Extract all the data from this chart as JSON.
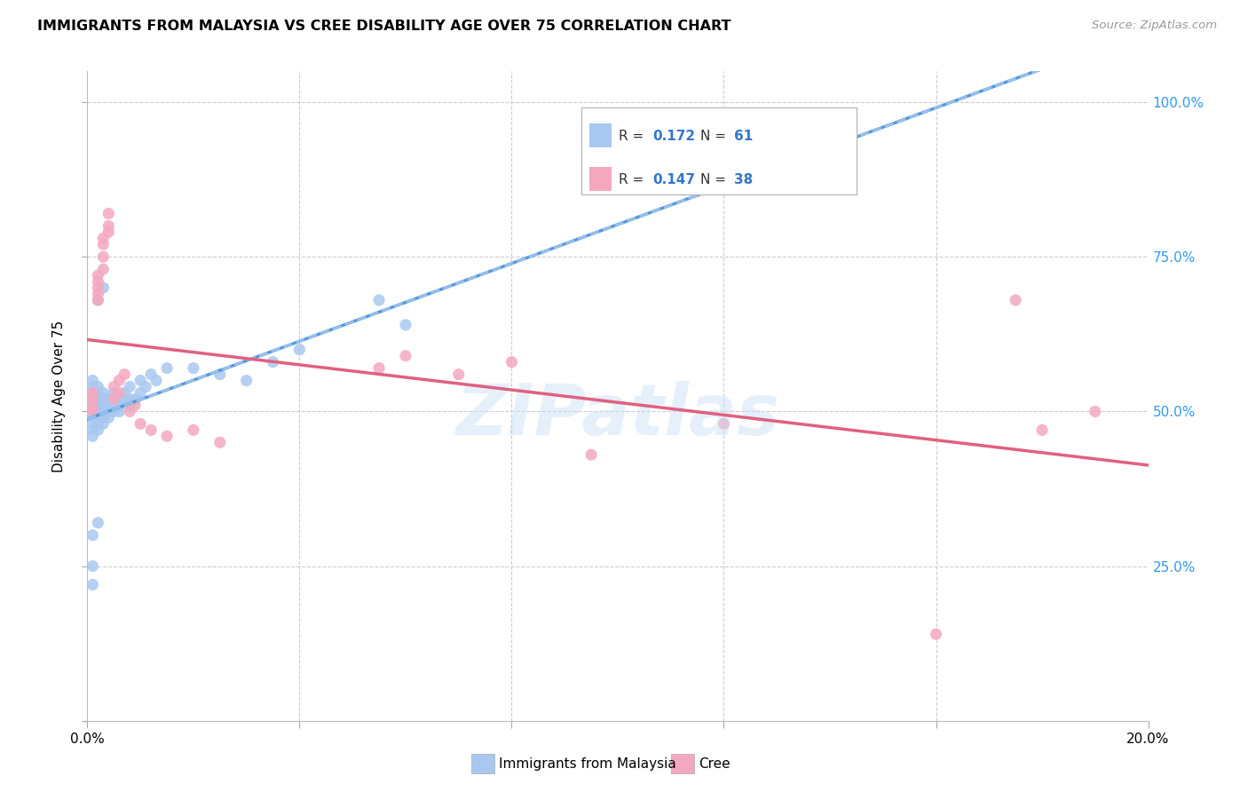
{
  "title": "IMMIGRANTS FROM MALAYSIA VS CREE DISABILITY AGE OVER 75 CORRELATION CHART",
  "source": "Source: ZipAtlas.com",
  "ylabel_label": "Disability Age Over 75",
  "xlim": [
    0.0,
    0.2
  ],
  "ylim": [
    0.0,
    1.05
  ],
  "blue_color": "#a8c8f0",
  "pink_color": "#f4a8c0",
  "blue_line_color": "#5599dd",
  "pink_line_color": "#e06080",
  "blue_dash_color": "#88bbee",
  "legend_text_color": "#3377cc",
  "background_color": "#ffffff",
  "grid_color": "#cccccc",
  "blue_x": [
    0.001,
    0.001,
    0.001,
    0.001,
    0.001,
    0.001,
    0.001,
    0.001,
    0.001,
    0.001,
    0.002,
    0.002,
    0.002,
    0.002,
    0.002,
    0.002,
    0.002,
    0.002,
    0.003,
    0.003,
    0.003,
    0.003,
    0.003,
    0.003,
    0.004,
    0.004,
    0.004,
    0.004,
    0.005,
    0.005,
    0.005,
    0.006,
    0.006,
    0.006,
    0.007,
    0.007,
    0.008,
    0.008,
    0.009,
    0.01,
    0.011,
    0.013,
    0.015,
    0.001,
    0.001,
    0.002,
    0.003,
    0.001,
    0.002,
    0.055,
    0.06,
    0.04,
    0.035,
    0.03,
    0.025,
    0.02,
    0.012,
    0.01,
    0.008,
    0.006
  ],
  "blue_y": [
    0.5,
    0.51,
    0.52,
    0.49,
    0.48,
    0.53,
    0.47,
    0.46,
    0.54,
    0.55,
    0.5,
    0.51,
    0.49,
    0.52,
    0.48,
    0.53,
    0.47,
    0.54,
    0.52,
    0.5,
    0.51,
    0.49,
    0.53,
    0.48,
    0.51,
    0.5,
    0.52,
    0.49,
    0.53,
    0.51,
    0.5,
    0.52,
    0.5,
    0.51,
    0.53,
    0.52,
    0.54,
    0.51,
    0.52,
    0.53,
    0.54,
    0.55,
    0.57,
    0.25,
    0.22,
    0.68,
    0.7,
    0.3,
    0.32,
    0.68,
    0.64,
    0.6,
    0.58,
    0.55,
    0.56,
    0.57,
    0.56,
    0.55,
    0.52,
    0.51
  ],
  "pink_x": [
    0.001,
    0.001,
    0.001,
    0.001,
    0.002,
    0.002,
    0.002,
    0.002,
    0.002,
    0.003,
    0.003,
    0.003,
    0.003,
    0.004,
    0.004,
    0.004,
    0.005,
    0.005,
    0.006,
    0.006,
    0.007,
    0.008,
    0.009,
    0.01,
    0.012,
    0.015,
    0.02,
    0.025,
    0.055,
    0.06,
    0.07,
    0.08,
    0.095,
    0.12,
    0.16,
    0.175,
    0.18,
    0.19
  ],
  "pink_y": [
    0.52,
    0.51,
    0.5,
    0.53,
    0.7,
    0.68,
    0.72,
    0.69,
    0.71,
    0.75,
    0.78,
    0.73,
    0.77,
    0.79,
    0.82,
    0.8,
    0.52,
    0.54,
    0.53,
    0.55,
    0.56,
    0.5,
    0.51,
    0.48,
    0.47,
    0.46,
    0.47,
    0.45,
    0.57,
    0.59,
    0.56,
    0.58,
    0.43,
    0.48,
    0.14,
    0.68,
    0.47,
    0.5
  ]
}
